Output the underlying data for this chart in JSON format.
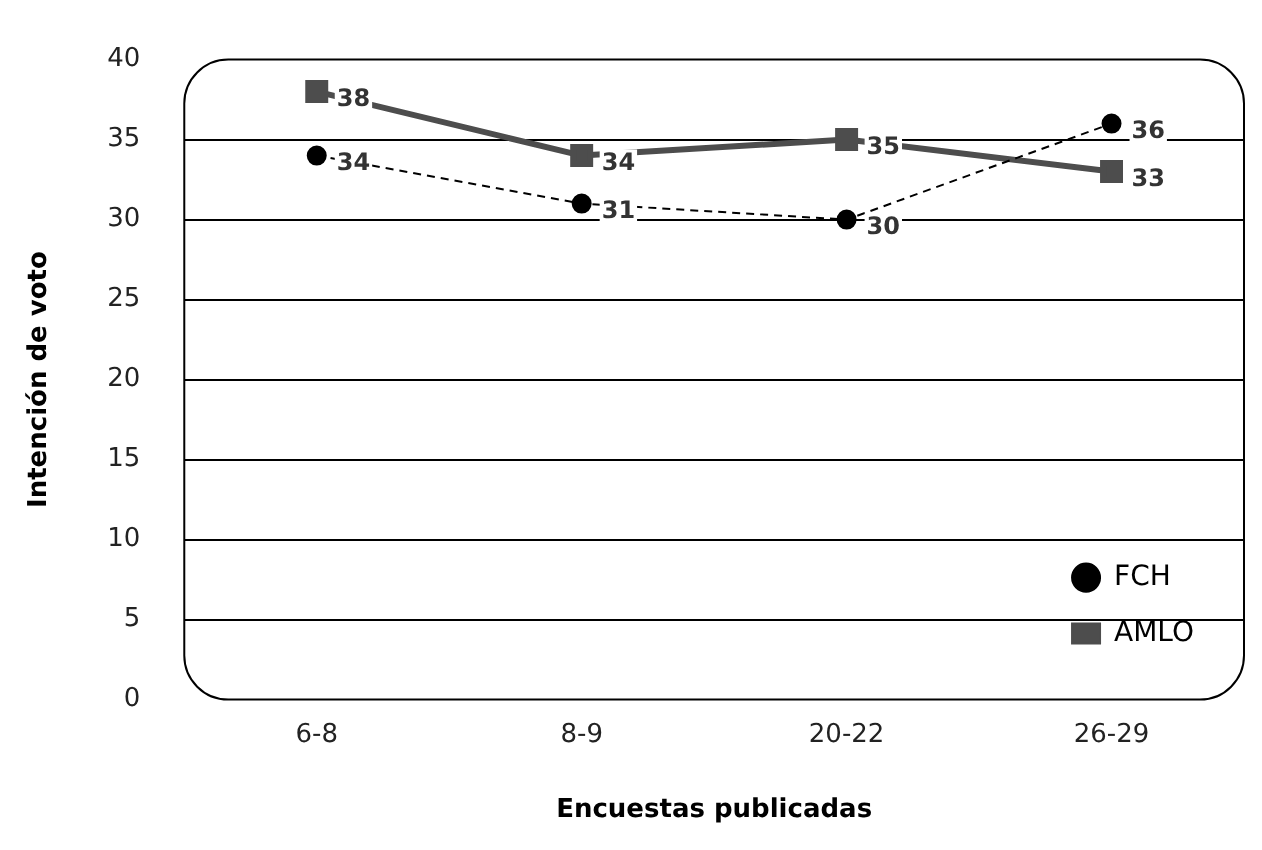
{
  "chart_data": {
    "type": "line",
    "xlabel": "Encuestas publicadas",
    "ylabel": "Intención de voto",
    "categories": [
      "6-8",
      "8-9",
      "20-22",
      "26-29"
    ],
    "series": [
      {
        "name": "FCH",
        "color": "#000000",
        "values": [
          34,
          31,
          30,
          36
        ],
        "marker": "circle",
        "line_style": "dashed"
      },
      {
        "name": "AMLO",
        "color": "#4d4d4d",
        "values": [
          38,
          34,
          35,
          33
        ],
        "marker": "square",
        "line_style": "solid"
      }
    ],
    "ylim": [
      0,
      40
    ],
    "yticks": [
      0,
      5,
      10,
      15,
      20,
      25,
      30,
      35,
      40
    ],
    "grid": "y",
    "legend": "bottom right",
    "data_labels": true
  }
}
